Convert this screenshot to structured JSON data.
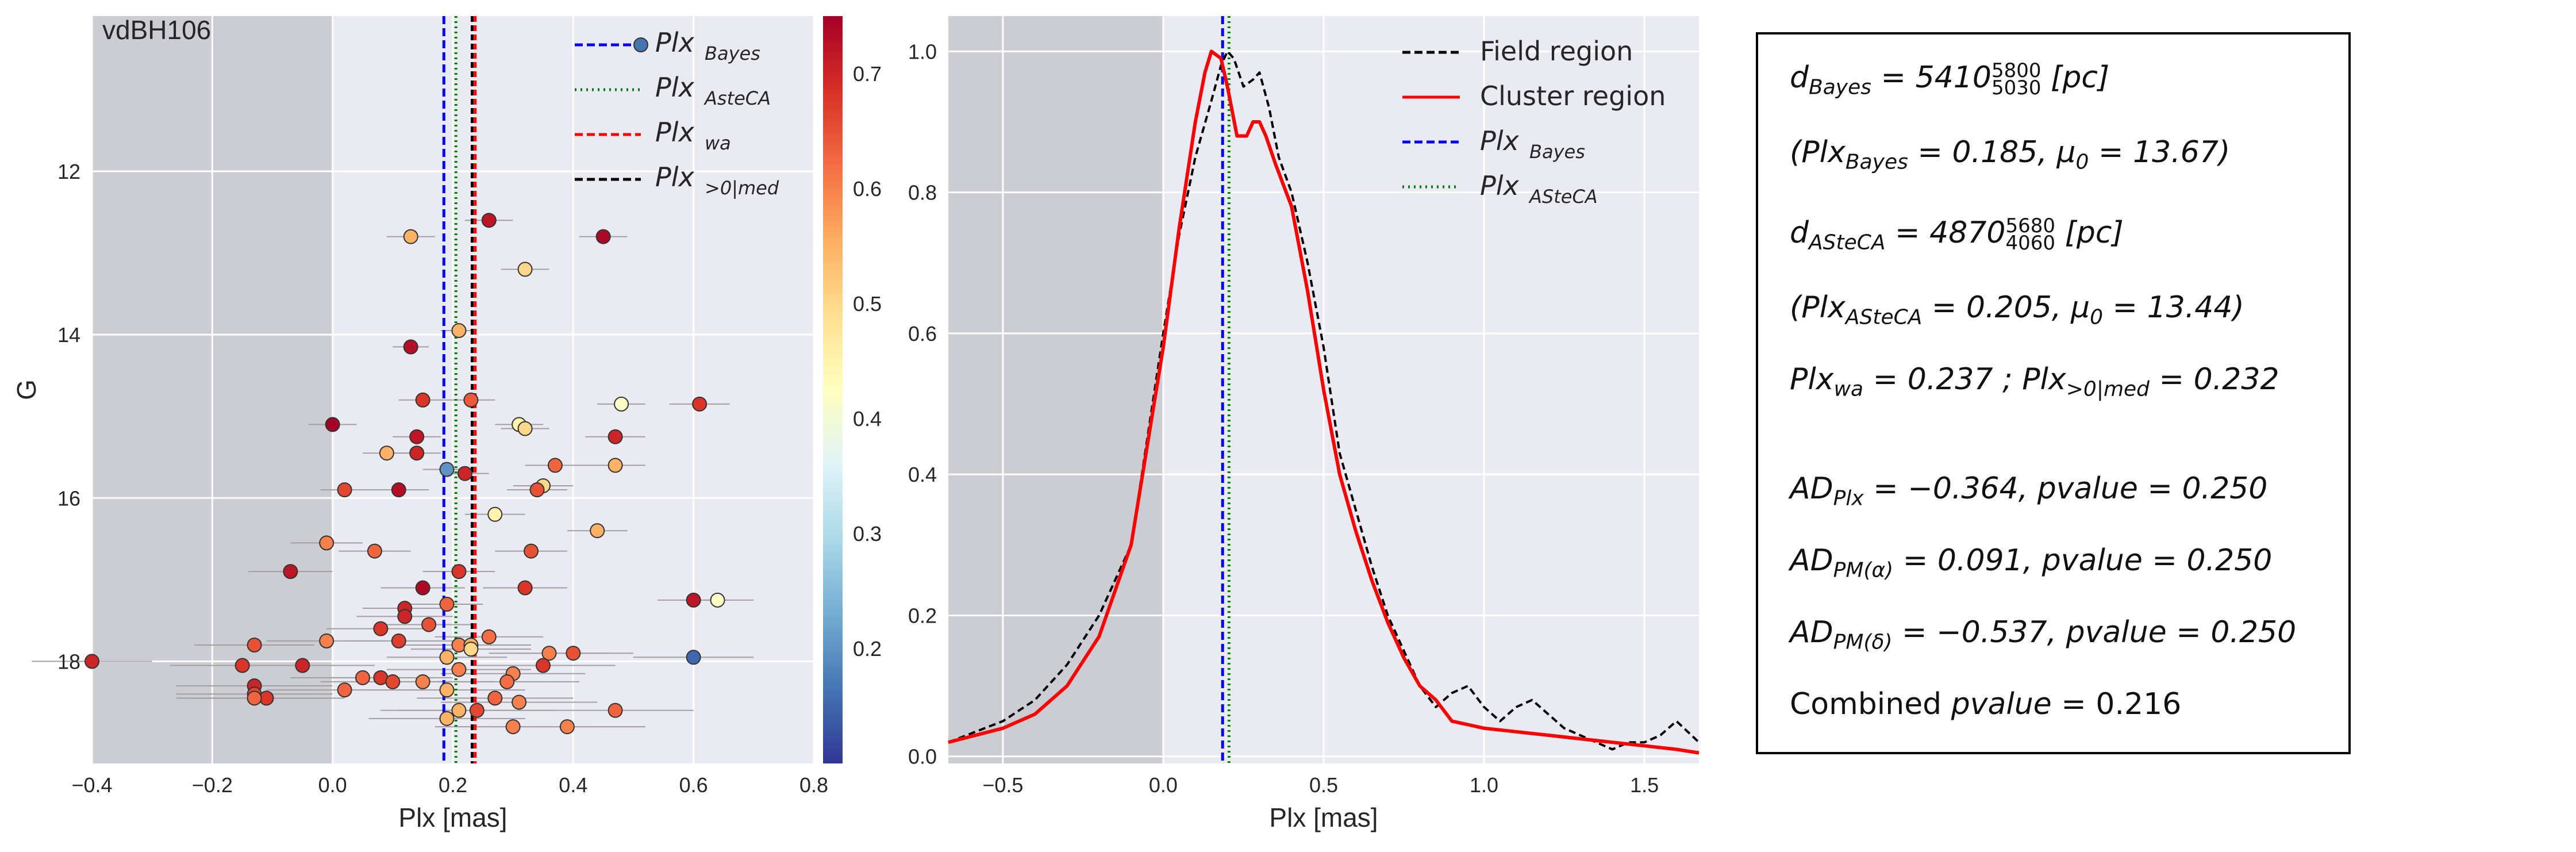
{
  "left_panel": {
    "title": "vdBH106",
    "xlabel": "Plx [mas]",
    "ylabel": "G",
    "xlim": [
      -0.4,
      0.8
    ],
    "ylim": [
      19.25,
      10.1
    ],
    "xticks": [
      "−0.4",
      "−0.2",
      "0.0",
      "0.2",
      "0.4",
      "0.6",
      "0.8"
    ],
    "xtick_values": [
      -0.4,
      -0.2,
      0.0,
      0.2,
      0.4,
      0.6,
      0.8
    ],
    "yticks": [
      "12",
      "14",
      "16",
      "18"
    ],
    "ytick_values": [
      12,
      14,
      16,
      18
    ],
    "shaded_region": [
      -0.4,
      0.0
    ],
    "legend": [
      {
        "main": "Plx",
        "sub": "Bayes",
        "color": "#0000ff",
        "style": "dashed"
      },
      {
        "main": "Plx",
        "sub": "AsteCA",
        "color": "#008000",
        "style": "dotted"
      },
      {
        "main": "Plx",
        "sub": "wa",
        "color": "#ff0000",
        "style": "dashed"
      },
      {
        "main": "Plx",
        "sub": ">0|med",
        "color": "#000000",
        "style": "dashed"
      }
    ],
    "colorbar": {
      "range": [
        0.1,
        0.75
      ],
      "ticks": [
        "0.2",
        "0.3",
        "0.4",
        "0.5",
        "0.6",
        "0.7"
      ],
      "tick_values": [
        0.2,
        0.3,
        0.4,
        0.5,
        0.6,
        0.7
      ],
      "colormap": "RdYlBu_r"
    }
  },
  "right_panel": {
    "xlabel": "Plx [mas]",
    "xlim": [
      -0.67,
      1.67
    ],
    "ylim": [
      -0.01,
      1.05
    ],
    "xticks": [
      "−0.5",
      "0.0",
      "0.5",
      "1.0",
      "1.5"
    ],
    "xtick_values": [
      -0.5,
      0.0,
      0.5,
      1.0,
      1.5
    ],
    "yticks": [
      "0.0",
      "0.2",
      "0.4",
      "0.6",
      "0.8",
      "1.0"
    ],
    "ytick_values": [
      0.0,
      0.2,
      0.4,
      0.6,
      0.8,
      1.0
    ],
    "shaded_region": [
      -0.67,
      0.0
    ],
    "legend": [
      {
        "label": "Field region",
        "color": "#000000",
        "style": "dashed"
      },
      {
        "label": "Cluster region",
        "color": "#ff0000",
        "style": "solid"
      },
      {
        "label": "Plx",
        "sub": "Bayes",
        "color": "#0000ff",
        "style": "dashed"
      },
      {
        "label": "Plx",
        "sub": "ASteCA",
        "color": "#008000",
        "style": "dotted"
      }
    ]
  },
  "text_box": {
    "line1": "d_Bayes = 5410 (5030, 5800) [pc]",
    "line2": "(Plx_Bayes = 0.185, μ0 = 13.67)",
    "line3": "d_ASteCA = 4870 (4060, 5680) [pc]",
    "line4": "(Plx_ASteCA = 0.205, μ0 = 13.44)",
    "line5": "Plx_wa = 0.237 ; Plx_>0|med = 0.232",
    "line6": "AD_Plx = −0.364, pvalue = 0.250",
    "line7": "AD_PM(α) = 0.091, pvalue = 0.250",
    "line8": "AD_PM(δ) = −0.537, pvalue = 0.250",
    "line9": "Combined pvalue = 0.216",
    "d_bayes": "5410",
    "d_bayes_lo": "5030",
    "d_bayes_hi": "5800",
    "plx_bayes": "0.185",
    "mu0_bayes": "13.67",
    "d_asteca": "4870",
    "d_asteca_lo": "4060",
    "d_asteca_hi": "5680",
    "plx_asteca": "0.205",
    "mu0_asteca": "13.44",
    "plx_wa": "0.237",
    "plx_med": "0.232",
    "ad_plx": "−0.364",
    "ad_plx_p": "0.250",
    "ad_pma": "0.091",
    "ad_pma_p": "0.250",
    "ad_pmd": "−0.537",
    "ad_pmd_p": "0.250",
    "combined_p": "0.216"
  },
  "chart_data": [
    {
      "type": "scatter",
      "title": "vdBH106",
      "xlabel": "Plx [mas]",
      "ylabel": "G",
      "xlim": [
        -0.4,
        0.8
      ],
      "ylim": [
        19.25,
        10.1
      ],
      "grid": true,
      "colorbar": {
        "range": [
          0.1,
          0.75
        ]
      },
      "vlines": {
        "Plx_Bayes": 0.185,
        "Plx_AsteCA": 0.205,
        "Plx_wa": 0.237,
        "Plx_>0|med": 0.232
      },
      "points": [
        {
          "x": 0.26,
          "y": 12.6,
          "c": 0.72,
          "xerr": 0.04
        },
        {
          "x": 0.13,
          "y": 12.8,
          "c": 0.55,
          "xerr": 0.04
        },
        {
          "x": 0.45,
          "y": 12.8,
          "c": 0.74,
          "xerr": 0.04
        },
        {
          "x": 0.32,
          "y": 13.2,
          "c": 0.5,
          "xerr": 0.04
        },
        {
          "x": 0.21,
          "y": 13.95,
          "c": 0.55,
          "xerr": 0.03
        },
        {
          "x": 0.13,
          "y": 14.15,
          "c": 0.73,
          "xerr": 0.03
        },
        {
          "x": 0.15,
          "y": 14.8,
          "c": 0.68,
          "xerr": 0.04
        },
        {
          "x": 0.23,
          "y": 14.8,
          "c": 0.64,
          "xerr": 0.04
        },
        {
          "x": 0.48,
          "y": 14.85,
          "c": 0.42,
          "xerr": 0.04
        },
        {
          "x": 0.61,
          "y": 14.85,
          "c": 0.68,
          "xerr": 0.05
        },
        {
          "x": 0.0,
          "y": 15.1,
          "c": 0.75,
          "xerr": 0.04
        },
        {
          "x": 0.31,
          "y": 15.1,
          "c": 0.45,
          "xerr": 0.04
        },
        {
          "x": 0.32,
          "y": 15.15,
          "c": 0.5,
          "xerr": 0.04
        },
        {
          "x": 0.14,
          "y": 15.25,
          "c": 0.72,
          "xerr": 0.04
        },
        {
          "x": 0.47,
          "y": 15.25,
          "c": 0.7,
          "xerr": 0.05
        },
        {
          "x": 0.09,
          "y": 15.45,
          "c": 0.55,
          "xerr": 0.04
        },
        {
          "x": 0.14,
          "y": 15.45,
          "c": 0.7,
          "xerr": 0.04
        },
        {
          "x": 0.37,
          "y": 15.6,
          "c": 0.63,
          "xerr": 0.05
        },
        {
          "x": 0.47,
          "y": 15.6,
          "c": 0.55,
          "xerr": 0.05
        },
        {
          "x": 0.19,
          "y": 15.65,
          "c": 0.2,
          "xerr": 0.04
        },
        {
          "x": 0.22,
          "y": 15.7,
          "c": 0.7,
          "xerr": 0.04
        },
        {
          "x": 0.35,
          "y": 15.85,
          "c": 0.5,
          "xerr": 0.05
        },
        {
          "x": 0.34,
          "y": 15.9,
          "c": 0.65,
          "xerr": 0.05
        },
        {
          "x": 0.02,
          "y": 15.9,
          "c": 0.66,
          "xerr": 0.04
        },
        {
          "x": 0.11,
          "y": 15.9,
          "c": 0.73,
          "xerr": 0.05
        },
        {
          "x": 0.27,
          "y": 16.2,
          "c": 0.45,
          "xerr": 0.05
        },
        {
          "x": 0.44,
          "y": 16.4,
          "c": 0.55,
          "xerr": 0.05
        },
        {
          "x": -0.01,
          "y": 16.55,
          "c": 0.6,
          "xerr": 0.06
        },
        {
          "x": 0.33,
          "y": 16.65,
          "c": 0.65,
          "xerr": 0.06
        },
        {
          "x": 0.07,
          "y": 16.65,
          "c": 0.63,
          "xerr": 0.06
        },
        {
          "x": -0.07,
          "y": 16.9,
          "c": 0.72,
          "xerr": 0.07
        },
        {
          "x": 0.21,
          "y": 16.9,
          "c": 0.68,
          "xerr": 0.06
        },
        {
          "x": 0.15,
          "y": 17.1,
          "c": 0.74,
          "xerr": 0.07
        },
        {
          "x": 0.32,
          "y": 17.1,
          "c": 0.68,
          "xerr": 0.07
        },
        {
          "x": 0.6,
          "y": 17.25,
          "c": 0.72,
          "xerr": 0.06
        },
        {
          "x": 0.64,
          "y": 17.25,
          "c": 0.42,
          "xerr": 0.06
        },
        {
          "x": 0.19,
          "y": 17.3,
          "c": 0.63,
          "xerr": 0.06
        },
        {
          "x": 0.12,
          "y": 17.35,
          "c": 0.7,
          "xerr": 0.07
        },
        {
          "x": 0.12,
          "y": 17.45,
          "c": 0.7,
          "xerr": 0.08
        },
        {
          "x": 0.08,
          "y": 17.6,
          "c": 0.68,
          "xerr": 0.09
        },
        {
          "x": 0.16,
          "y": 17.55,
          "c": 0.65,
          "xerr": 0.08
        },
        {
          "x": 0.26,
          "y": 17.7,
          "c": 0.62,
          "xerr": 0.09
        },
        {
          "x": -0.01,
          "y": 17.75,
          "c": 0.6,
          "xerr": 0.1
        },
        {
          "x": 0.11,
          "y": 17.75,
          "c": 0.67,
          "xerr": 0.09
        },
        {
          "x": -0.13,
          "y": 17.8,
          "c": 0.65,
          "xerr": 0.1
        },
        {
          "x": 0.21,
          "y": 17.8,
          "c": 0.6,
          "xerr": 0.1
        },
        {
          "x": 0.23,
          "y": 17.8,
          "c": 0.55,
          "xerr": 0.1
        },
        {
          "x": 0.23,
          "y": 17.85,
          "c": 0.5,
          "xerr": 0.1
        },
        {
          "x": 0.4,
          "y": 17.9,
          "c": 0.65,
          "xerr": 0.1
        },
        {
          "x": 0.36,
          "y": 17.9,
          "c": 0.6,
          "xerr": 0.1
        },
        {
          "x": 0.19,
          "y": 17.95,
          "c": 0.55,
          "xerr": 0.1
        },
        {
          "x": -0.4,
          "y": 18.0,
          "c": 0.7,
          "xerr": 0.1
        },
        {
          "x": 0.6,
          "y": 17.95,
          "c": 0.15,
          "xerr": 0.1
        },
        {
          "x": -0.15,
          "y": 18.05,
          "c": 0.68,
          "xerr": 0.12
        },
        {
          "x": -0.05,
          "y": 18.05,
          "c": 0.7,
          "xerr": 0.12
        },
        {
          "x": 0.35,
          "y": 18.05,
          "c": 0.68,
          "xerr": 0.12
        },
        {
          "x": 0.21,
          "y": 18.1,
          "c": 0.6,
          "xerr": 0.12
        },
        {
          "x": 0.3,
          "y": 18.15,
          "c": 0.6,
          "xerr": 0.12
        },
        {
          "x": 0.05,
          "y": 18.2,
          "c": 0.63,
          "xerr": 0.12
        },
        {
          "x": 0.08,
          "y": 18.2,
          "c": 0.68,
          "xerr": 0.12
        },
        {
          "x": 0.1,
          "y": 18.25,
          "c": 0.66,
          "xerr": 0.12
        },
        {
          "x": 0.15,
          "y": 18.25,
          "c": 0.6,
          "xerr": 0.12
        },
        {
          "x": 0.29,
          "y": 18.25,
          "c": 0.62,
          "xerr": 0.12
        },
        {
          "x": -0.13,
          "y": 18.3,
          "c": 0.7,
          "xerr": 0.13
        },
        {
          "x": 0.02,
          "y": 18.35,
          "c": 0.63,
          "xerr": 0.13
        },
        {
          "x": 0.19,
          "y": 18.35,
          "c": 0.55,
          "xerr": 0.13
        },
        {
          "x": -0.13,
          "y": 18.4,
          "c": 0.66,
          "xerr": 0.13
        },
        {
          "x": -0.11,
          "y": 18.45,
          "c": 0.68,
          "xerr": 0.13
        },
        {
          "x": -0.13,
          "y": 18.45,
          "c": 0.63,
          "xerr": 0.13
        },
        {
          "x": 0.27,
          "y": 18.45,
          "c": 0.63,
          "xerr": 0.13
        },
        {
          "x": 0.31,
          "y": 18.5,
          "c": 0.6,
          "xerr": 0.13
        },
        {
          "x": 0.21,
          "y": 18.6,
          "c": 0.55,
          "xerr": 0.13
        },
        {
          "x": 0.24,
          "y": 18.6,
          "c": 0.66,
          "xerr": 0.13
        },
        {
          "x": 0.47,
          "y": 18.6,
          "c": 0.63,
          "xerr": 0.13
        },
        {
          "x": 0.19,
          "y": 18.7,
          "c": 0.55,
          "xerr": 0.13
        },
        {
          "x": 0.3,
          "y": 18.8,
          "c": 0.6,
          "xerr": 0.13
        },
        {
          "x": 0.39,
          "y": 18.8,
          "c": 0.6,
          "xerr": 0.13
        }
      ]
    },
    {
      "type": "line",
      "xlabel": "Plx [mas]",
      "xlim": [
        -0.67,
        1.67
      ],
      "ylim": [
        -0.01,
        1.05
      ],
      "grid": true,
      "vlines": {
        "Plx_Bayes": 0.185,
        "Plx_ASteCA": 0.205
      },
      "series": [
        {
          "name": "Field region",
          "color": "#000000",
          "style": "dashed",
          "x": [
            -0.67,
            -0.5,
            -0.4,
            -0.3,
            -0.2,
            -0.1,
            0.0,
            0.05,
            0.1,
            0.15,
            0.18,
            0.2,
            0.22,
            0.25,
            0.28,
            0.3,
            0.33,
            0.36,
            0.4,
            0.45,
            0.5,
            0.55,
            0.6,
            0.65,
            0.7,
            0.75,
            0.8,
            0.85,
            0.9,
            0.95,
            1.0,
            1.05,
            1.1,
            1.15,
            1.2,
            1.25,
            1.3,
            1.35,
            1.4,
            1.45,
            1.5,
            1.55,
            1.6,
            1.67
          ],
          "y": [
            0.02,
            0.05,
            0.08,
            0.13,
            0.2,
            0.3,
            0.6,
            0.74,
            0.85,
            0.93,
            0.98,
            1.0,
            0.99,
            0.95,
            0.96,
            0.97,
            0.92,
            0.85,
            0.8,
            0.7,
            0.58,
            0.43,
            0.35,
            0.27,
            0.2,
            0.15,
            0.1,
            0.07,
            0.09,
            0.1,
            0.07,
            0.05,
            0.07,
            0.08,
            0.06,
            0.04,
            0.03,
            0.02,
            0.01,
            0.02,
            0.02,
            0.03,
            0.05,
            0.02
          ]
        },
        {
          "name": "Cluster region",
          "color": "#ff0000",
          "style": "solid",
          "x": [
            -0.67,
            -0.5,
            -0.4,
            -0.3,
            -0.2,
            -0.1,
            0.0,
            0.05,
            0.1,
            0.13,
            0.15,
            0.18,
            0.2,
            0.23,
            0.26,
            0.28,
            0.3,
            0.32,
            0.35,
            0.4,
            0.45,
            0.5,
            0.55,
            0.6,
            0.65,
            0.7,
            0.75,
            0.8,
            0.85,
            0.9,
            0.95,
            1.0,
            1.1,
            1.2,
            1.3,
            1.4,
            1.5,
            1.6,
            1.67
          ],
          "y": [
            0.02,
            0.04,
            0.06,
            0.1,
            0.17,
            0.3,
            0.58,
            0.75,
            0.9,
            0.97,
            1.0,
            0.99,
            0.95,
            0.88,
            0.88,
            0.9,
            0.9,
            0.88,
            0.84,
            0.78,
            0.66,
            0.52,
            0.4,
            0.32,
            0.25,
            0.19,
            0.14,
            0.1,
            0.08,
            0.05,
            0.045,
            0.04,
            0.035,
            0.03,
            0.025,
            0.02,
            0.015,
            0.01,
            0.005
          ]
        }
      ]
    }
  ]
}
